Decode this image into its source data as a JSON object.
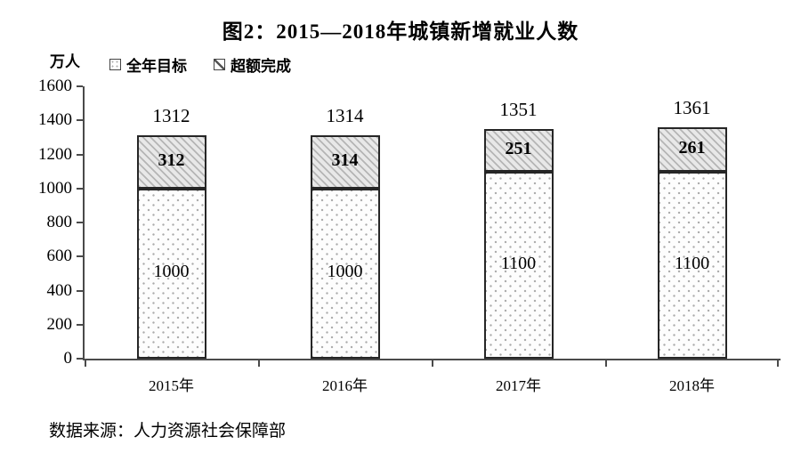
{
  "title": "图2：2015—2018年城镇新增就业人数",
  "unit_label": "万人",
  "legend": [
    {
      "label": "全年目标",
      "pattern": "dots"
    },
    {
      "label": "超额完成",
      "pattern": "hatch"
    }
  ],
  "source": "数据来源：人力资源社会保障部",
  "colors": {
    "axis": "#4a4a4a",
    "bar_border": "#262626",
    "hatch_line": "#b5b5b5",
    "hatch_bg": "#e8e8e8",
    "dot": "#ababab",
    "dot_bg": "#fdfdfd",
    "text": "#000000"
  },
  "chart_data": {
    "type": "bar",
    "stacked": true,
    "title": "图2：2015—2018年城镇新增就业人数",
    "ylabel": "万人",
    "xlabel": "",
    "categories": [
      "2015年",
      "2016年",
      "2017年",
      "2018年"
    ],
    "series": [
      {
        "name": "全年目标",
        "pattern": "dots",
        "values": [
          1000,
          1000,
          1100,
          1100
        ]
      },
      {
        "name": "超额完成",
        "pattern": "hatch",
        "values": [
          312,
          314,
          251,
          261
        ]
      }
    ],
    "totals": [
      1312,
      1314,
      1351,
      1361
    ],
    "ylim": [
      0,
      1600
    ],
    "ytick_interval": 200,
    "yticks": [
      0,
      200,
      400,
      600,
      800,
      1000,
      1200,
      1400,
      1600
    ],
    "grid": false,
    "legend_position": "top-left"
  }
}
